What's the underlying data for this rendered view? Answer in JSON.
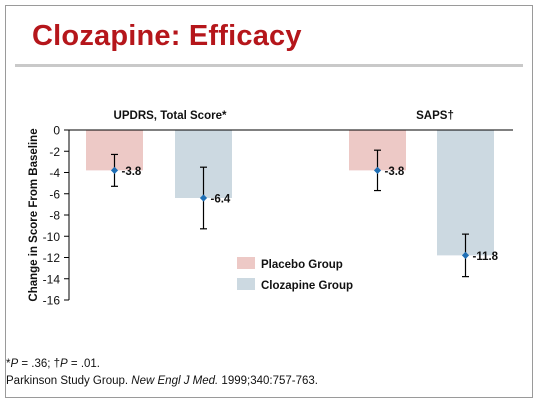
{
  "slide": {
    "title": "Clozapine: Efficacy",
    "footnote": {
      "p1_prefix": "*",
      "p1_label": "P",
      "p1_value": " = .36; ",
      "p2_prefix": "†",
      "p2_label": "P",
      "p2_value": " = .01.",
      "citation_author": "Parkinson Study Group. ",
      "citation_journal": "New Engl J Med.",
      "citation_details": " 1999;340:757-763."
    }
  },
  "chart_data": {
    "type": "bar",
    "title": "",
    "ylabel": "Change in Score From Baseline",
    "xlabel": "",
    "ylim": [
      -16,
      0
    ],
    "yticks": [
      0,
      -2,
      -4,
      -6,
      -8,
      -10,
      -12,
      -14,
      -16
    ],
    "grid": false,
    "legend_position": "center",
    "groups": [
      {
        "label": "UPDRS, Total Score*"
      },
      {
        "label": "SAPS†"
      }
    ],
    "series": [
      {
        "name": "Placebo Group",
        "color": "#edc9c6",
        "values": [
          -3.8,
          -3.8
        ],
        "labels": [
          "-3.8",
          "-3.8"
        ],
        "error": [
          [
            -5.3,
            -2.3
          ],
          [
            -5.7,
            -1.9
          ]
        ]
      },
      {
        "name": "Clozapine Group",
        "color": "#ccd9e1",
        "values": [
          -6.4,
          -11.8
        ],
        "labels": [
          "-6.4",
          "-11.8"
        ],
        "error": [
          [
            -9.3,
            -3.5
          ],
          [
            -13.8,
            -9.8
          ]
        ]
      }
    ],
    "marker_color": "#1f6fb5"
  }
}
